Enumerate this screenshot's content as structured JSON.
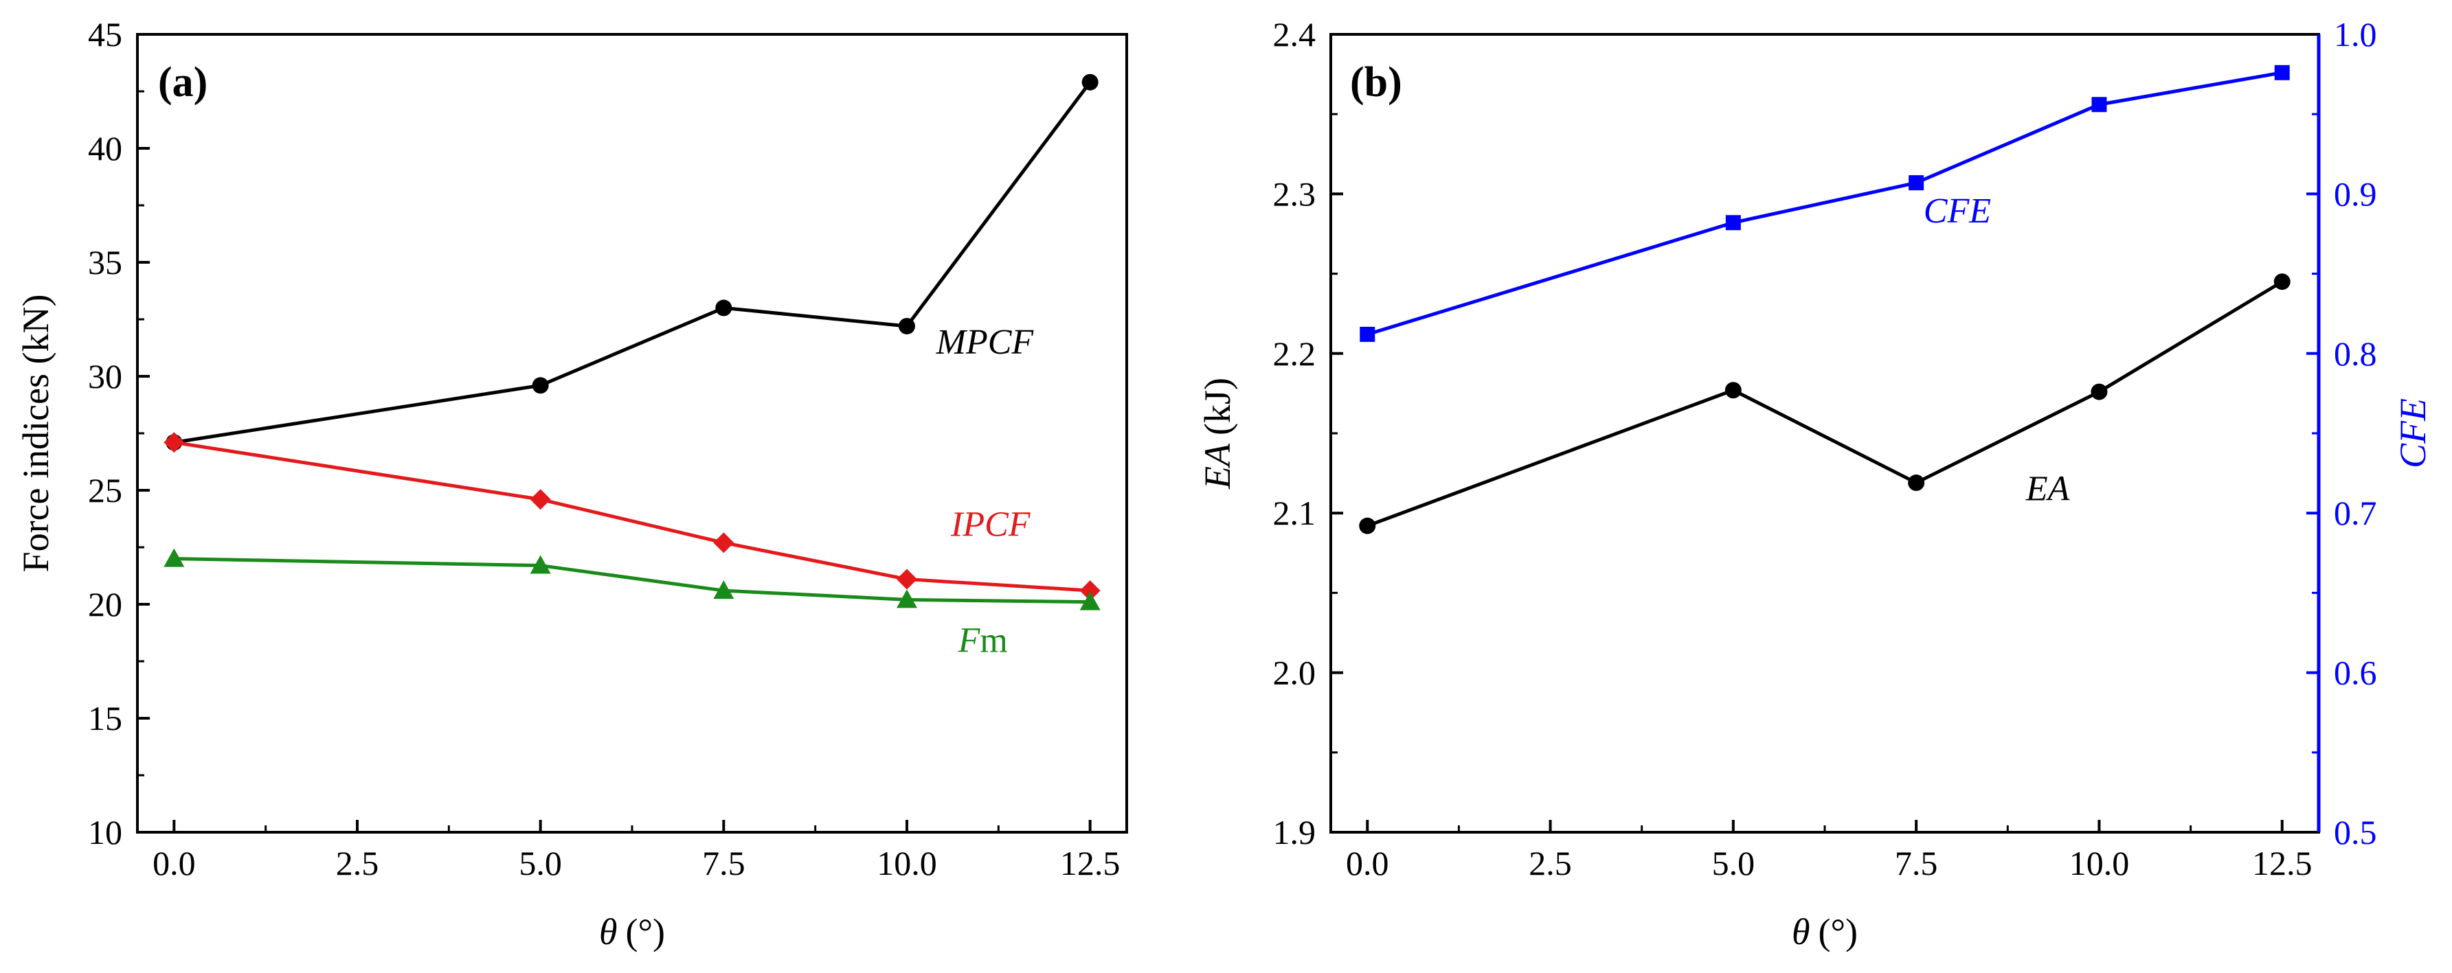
{
  "chart_data": [
    {
      "panel_label": "(a)",
      "type": "line",
      "xlabel": {
        "symbol": "θ",
        "unit": "(°)"
      },
      "ylabel": "Force indices (kN)",
      "x": [
        0.0,
        5.0,
        7.5,
        10.0,
        12.5
      ],
      "xlim": [
        -0.5,
        13.0
      ],
      "ylim": [
        10,
        45
      ],
      "x_ticks": [
        {
          "value": 0.0,
          "label": "0.0"
        },
        {
          "value": 2.5,
          "label": "2.5"
        },
        {
          "value": 5.0,
          "label": "5.0"
        },
        {
          "value": 7.5,
          "label": "7.5"
        },
        {
          "value": 10.0,
          "label": "10.0"
        },
        {
          "value": 12.5,
          "label": "12.5"
        }
      ],
      "y_ticks": [
        {
          "value": 10,
          "label": "10"
        },
        {
          "value": 15,
          "label": "15"
        },
        {
          "value": 20,
          "label": "20"
        },
        {
          "value": 25,
          "label": "25"
        },
        {
          "value": 30,
          "label": "30"
        },
        {
          "value": 35,
          "label": "35"
        },
        {
          "value": 40,
          "label": "40"
        },
        {
          "value": 45,
          "label": "45"
        }
      ],
      "series": [
        {
          "name": "MPCF",
          "label": "MPCF",
          "label_italic": "MPCF",
          "label_suffix": "",
          "color": "#000000",
          "marker": "circle",
          "axis": "left",
          "values": [
            27.1,
            29.6,
            33.0,
            32.2,
            42.9
          ],
          "label_at": {
            "x": 10.4,
            "y": 31.0
          }
        },
        {
          "name": "IPCF",
          "label": "IPCF",
          "label_italic": "IPCF",
          "label_suffix": "",
          "color": "#e31a1c",
          "marker": "diamond",
          "axis": "left",
          "values": [
            27.1,
            24.6,
            22.7,
            21.1,
            20.6
          ],
          "label_at": {
            "x": 10.6,
            "y": 23.0
          }
        },
        {
          "name": "Fm",
          "label": "Fm",
          "label_italic": "F",
          "label_suffix": "m",
          "color": "#1a8a1a",
          "marker": "triangle",
          "axis": "left",
          "values": [
            22.0,
            21.7,
            20.6,
            20.2,
            20.1
          ],
          "label_at": {
            "x": 10.7,
            "y": 17.9
          }
        }
      ]
    },
    {
      "panel_label": "(b)",
      "type": "line",
      "xlabel": {
        "symbol": "θ",
        "unit": "(°)"
      },
      "ylabel": {
        "italic": "EA",
        "unit": "(kJ)"
      },
      "y2label": "CFE",
      "x": [
        0.0,
        5.0,
        7.5,
        10.0,
        12.5
      ],
      "xlim": [
        -0.5,
        13.0
      ],
      "ylim": [
        1.9,
        2.4
      ],
      "y2lim": [
        0.5,
        1.0
      ],
      "y2_color": "#0000ff",
      "x_ticks": [
        {
          "value": 0.0,
          "label": "0.0"
        },
        {
          "value": 2.5,
          "label": "2.5"
        },
        {
          "value": 5.0,
          "label": "5.0"
        },
        {
          "value": 7.5,
          "label": "7.5"
        },
        {
          "value": 10.0,
          "label": "10.0"
        },
        {
          "value": 12.5,
          "label": "12.5"
        }
      ],
      "y_ticks": [
        {
          "value": 1.9,
          "label": "1.9"
        },
        {
          "value": 2.0,
          "label": "2.0"
        },
        {
          "value": 2.1,
          "label": "2.1"
        },
        {
          "value": 2.2,
          "label": "2.2"
        },
        {
          "value": 2.3,
          "label": "2.3"
        },
        {
          "value": 2.4,
          "label": "2.4"
        }
      ],
      "y2_ticks": [
        {
          "value": 0.5,
          "label": "0.5"
        },
        {
          "value": 0.6,
          "label": "0.6"
        },
        {
          "value": 0.7,
          "label": "0.7"
        },
        {
          "value": 0.8,
          "label": "0.8"
        },
        {
          "value": 0.9,
          "label": "0.9"
        },
        {
          "value": 1.0,
          "label": "1.0"
        }
      ],
      "series": [
        {
          "name": "EA",
          "label": "EA",
          "label_italic": "EA",
          "label_suffix": "",
          "color": "#000000",
          "marker": "circle",
          "axis": "left",
          "values": [
            2.092,
            2.177,
            2.119,
            2.176,
            2.245
          ],
          "label_at": {
            "x": 9.0,
            "y": 2.108
          }
        },
        {
          "name": "CFE",
          "label": "CFE",
          "label_italic": "CFE",
          "label_suffix": "",
          "color": "#0000ff",
          "marker": "square",
          "axis": "right",
          "values": [
            0.812,
            0.882,
            0.907,
            0.956,
            0.976
          ],
          "label_at": {
            "x": 7.6,
            "y": 0.882
          }
        }
      ]
    }
  ]
}
